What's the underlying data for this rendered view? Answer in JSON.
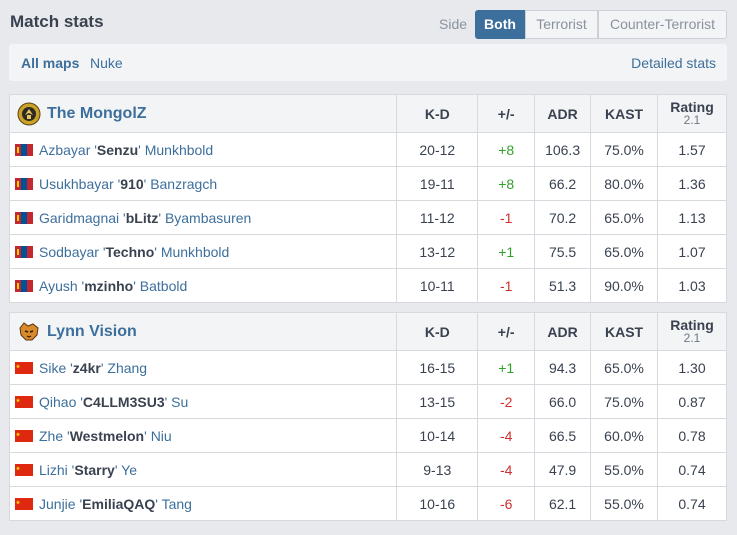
{
  "header": {
    "title": "Match stats",
    "side_label": "Side",
    "side_options": [
      "Both",
      "Terrorist",
      "Counter-Terrorist"
    ],
    "side_selected": "Both"
  },
  "mapbar": {
    "all_maps": "All maps",
    "map": "Nuke",
    "detailed": "Detailed stats"
  },
  "columns": {
    "kd": "K-D",
    "pm": "+/-",
    "adr": "ADR",
    "kast": "KAST",
    "rating": "Rating",
    "rating_ver": "2.1"
  },
  "teams": [
    {
      "name": "The MongolZ",
      "flag": "mongolia",
      "players": [
        {
          "first": "Azbayar",
          "nick": "Senzu",
          "last": "Munkhbold",
          "kd": "20-12",
          "pm": "+8",
          "adr": "106.3",
          "kast": "75.0%",
          "rating": "1.57"
        },
        {
          "first": "Usukhbayar",
          "nick": "910",
          "last": "Banzragch",
          "kd": "19-11",
          "pm": "+8",
          "adr": "66.2",
          "kast": "80.0%",
          "rating": "1.36"
        },
        {
          "first": "Garidmagnai",
          "nick": "bLitz",
          "last": "Byambasuren",
          "kd": "11-12",
          "pm": "-1",
          "adr": "70.2",
          "kast": "65.0%",
          "rating": "1.13"
        },
        {
          "first": "Sodbayar",
          "nick": "Techno",
          "last": "Munkhbold",
          "kd": "13-12",
          "pm": "+1",
          "adr": "75.5",
          "kast": "65.0%",
          "rating": "1.07"
        },
        {
          "first": "Ayush",
          "nick": "mzinho",
          "last": "Batbold",
          "kd": "10-11",
          "pm": "-1",
          "adr": "51.3",
          "kast": "90.0%",
          "rating": "1.03"
        }
      ]
    },
    {
      "name": "Lynn Vision",
      "flag": "china",
      "players": [
        {
          "first": "Sike",
          "nick": "z4kr",
          "last": "Zhang",
          "kd": "16-15",
          "pm": "+1",
          "adr": "94.3",
          "kast": "65.0%",
          "rating": "1.30"
        },
        {
          "first": "Qihao",
          "nick": "C4LLM3SU3",
          "last": "Su",
          "kd": "13-15",
          "pm": "-2",
          "adr": "66.0",
          "kast": "75.0%",
          "rating": "0.87"
        },
        {
          "first": "Zhe",
          "nick": "Westmelon",
          "last": "Niu",
          "kd": "10-14",
          "pm": "-4",
          "adr": "66.5",
          "kast": "60.0%",
          "rating": "0.78"
        },
        {
          "first": "Lizhi",
          "nick": "Starry",
          "last": "Ye",
          "kd": "9-13",
          "pm": "-4",
          "adr": "47.9",
          "kast": "55.0%",
          "rating": "0.74"
        },
        {
          "first": "Junjie",
          "nick": "EmiliaQAQ",
          "last": "Tang",
          "kd": "10-16",
          "pm": "-6",
          "adr": "62.1",
          "kast": "55.0%",
          "rating": "0.74"
        }
      ]
    }
  ],
  "colors": {
    "accent": "#3d6f9c",
    "positive": "#32a02b",
    "negative": "#d12f2f",
    "background": "#e7e9ec"
  }
}
